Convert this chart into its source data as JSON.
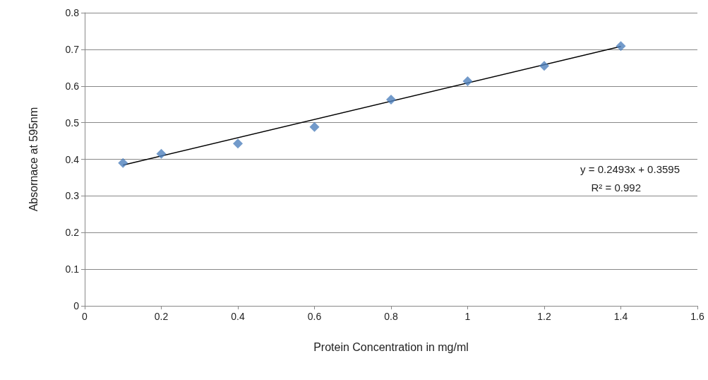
{
  "chart_data": {
    "type": "scatter",
    "xlabel": "Protein Concentration in mg/ml",
    "ylabel": "Absornace at 595nm",
    "xlim": [
      0,
      1.6
    ],
    "xticks": [
      0,
      0.2,
      0.4,
      0.6,
      0.8,
      1,
      1.2,
      1.4,
      1.6
    ],
    "ylim": [
      0,
      0.8
    ],
    "yticks": [
      0,
      0.1,
      0.2,
      0.3,
      0.4,
      0.5,
      0.6,
      0.7,
      0.8
    ],
    "grid": "y",
    "marker": "diamond",
    "series": [
      {
        "color": "#4f81bd",
        "x": [
          0.1,
          0.2,
          0.4,
          0.6,
          0.8,
          1.0,
          1.2,
          1.4
        ],
        "values": [
          0.39,
          0.415,
          0.443,
          0.488,
          0.563,
          0.613,
          0.655,
          0.709
        ]
      },
      {
        "type": "line",
        "color": "#000000",
        "marker": "none",
        "line_style": "solid",
        "x": [
          0.1,
          1.4
        ],
        "values": [
          0.384,
          0.708
        ]
      }
    ],
    "annotations": [
      "y = 0.2493x + 0.3595",
      "R² = 0.992"
    ]
  }
}
